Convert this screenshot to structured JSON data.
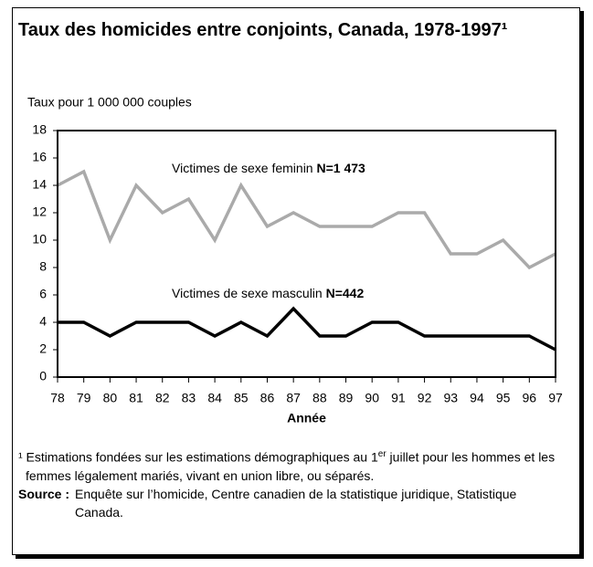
{
  "chart_data": {
    "type": "line",
    "title": "Taux des homicides entre conjoints, Canada, 1978-1997¹",
    "y_label": "Taux pour 1 000 000 couples",
    "x_label": "Année",
    "categories": [
      "78",
      "79",
      "80",
      "81",
      "82",
      "83",
      "84",
      "85",
      "86",
      "87",
      "88",
      "89",
      "90",
      "91",
      "92",
      "93",
      "94",
      "95",
      "96",
      "97"
    ],
    "series": [
      {
        "name": "Victimes de sexe feminin",
        "count_label": "N=1 473",
        "color": "#aaaaaa",
        "values": [
          14,
          15,
          10,
          14,
          12,
          13,
          10,
          14,
          11,
          12,
          11,
          11,
          11,
          12,
          12,
          9,
          9,
          10,
          8,
          9
        ]
      },
      {
        "name": "Victimes de sexe masculin",
        "count_label": "N=442",
        "color": "#000000",
        "values": [
          4,
          4,
          3,
          4,
          4,
          4,
          3,
          4,
          3,
          5,
          3,
          3,
          4,
          4,
          3,
          3,
          3,
          3,
          3,
          2
        ]
      }
    ],
    "ylim": [
      0,
      18
    ],
    "yticks": [
      0,
      2,
      4,
      6,
      8,
      10,
      12,
      14,
      16,
      18
    ],
    "grid": false,
    "footnote": {
      "before": "¹ Estimations fondées sur les estimations démographiques au 1",
      "sup": "er",
      "after": " juillet pour les hommes et les femmes légalement mariés, vivant en union libre, ou séparés."
    },
    "source": {
      "label": "Source :",
      "text": "Enquête sur l’homicide, Centre canadien de la statistique juridique, Statistique Canada."
    }
  }
}
